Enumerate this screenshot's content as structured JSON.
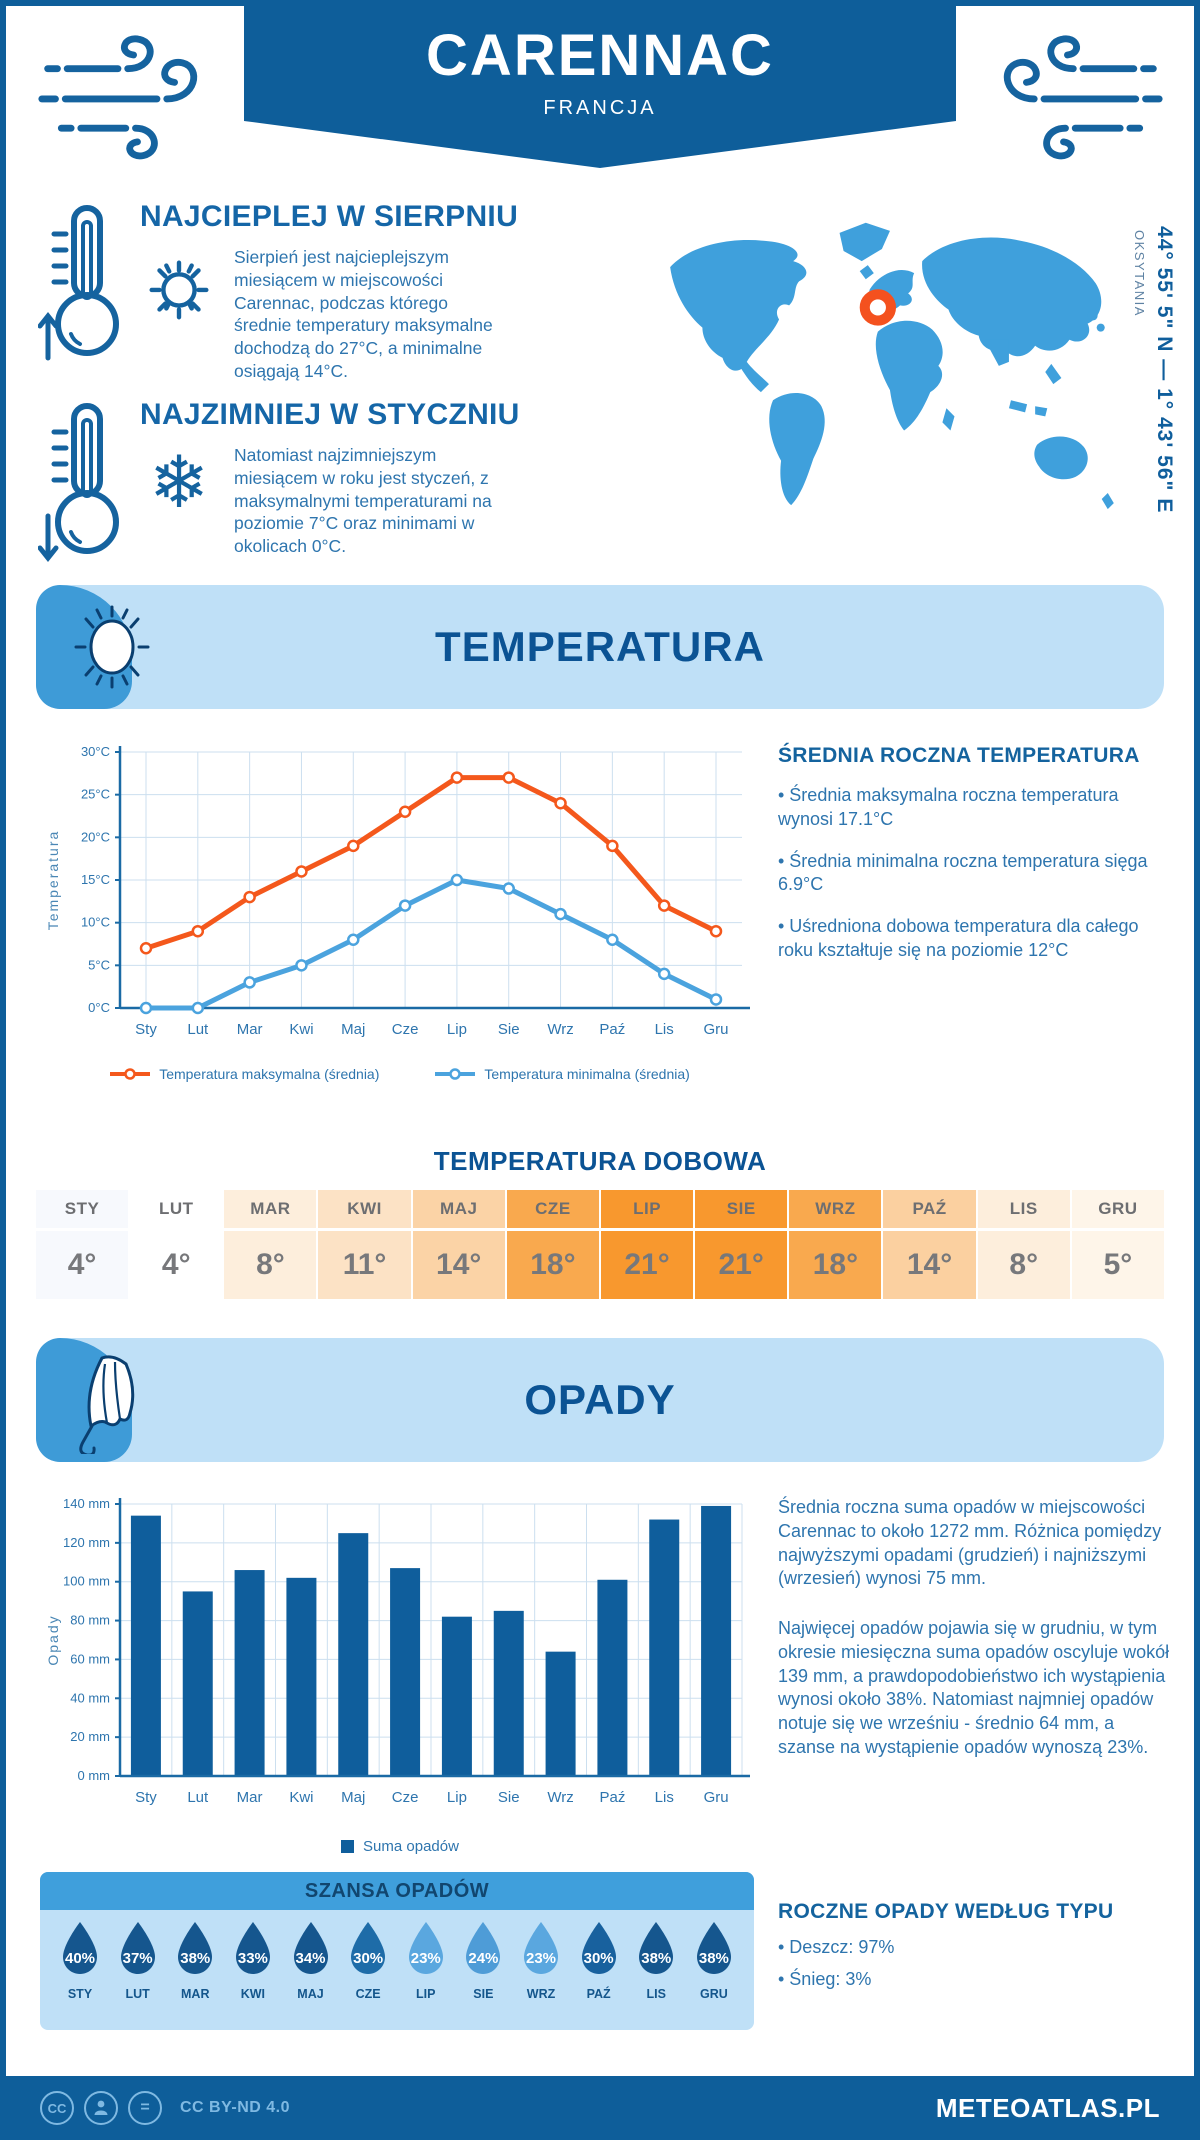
{
  "colors": {
    "brand_dark_blue": "#0E5E9A",
    "heading_blue": "#1566A7",
    "body_blue": "#2E75AE",
    "banner_bg": "#BFE0F7",
    "banner_accent": "#3E9BD7",
    "map_blue": "#3FA0DC",
    "marker_orange": "#F4511E",
    "grid_blue": "#CCDFEF",
    "axis_blue": "#1A6AA5",
    "footer_muted": "#7FB9E2"
  },
  "header": {
    "title": "CARENNAC",
    "subtitle": "FRANCJA"
  },
  "location": {
    "coordinates": "44° 55' 5\" N — 1° 43' 56\" E",
    "region": "OKSYTANIA"
  },
  "warmest": {
    "heading": "NAJCIEPLEJ W SIERPNIU",
    "text": "Sierpień jest najcieplejszym miesiącem w miejscowości Carennac, podczas którego średnie temperatury maksymalne dochodzą do 27°C, a minimalne osiągają 14°C."
  },
  "coldest": {
    "heading": "NAJZIMNIEJ W STYCZNIU",
    "text": "Natomiast najzimniejszym miesiącem w roku jest styczeń, z maksymalnymi temperaturami na poziomie 7°C oraz minimami w okolicach 0°C."
  },
  "temperature": {
    "banner_title": "TEMPERATURA",
    "summary_heading": "ŚREDNIA ROCZNA TEMPERATURA",
    "bullets": [
      "• Średnia maksymalna roczna temperatura wynosi 17.1°C",
      "• Średnia minimalna roczna temperatura sięga 6.9°C",
      "• Uśredniona dobowa temperatura dla całego roku kształtuje się na poziomie 12°C"
    ],
    "daily_heading": "TEMPERATURA DOBOWA"
  },
  "precipitation": {
    "banner_title": "OPADY",
    "paragraphs": [
      "Średnia roczna suma opadów w miejscowości Carennac to około 1272 mm. Różnica pomiędzy najwyższymi opadami (grudzień) i najniższymi (wrzesień) wynosi 75 mm.",
      "Najwięcej opadów pojawia się w grudniu, w tym okresie miesięczna suma opadów oscyluje wokół 139 mm, a prawdopodobieństwo ich wystąpienia wynosi około 38%. Natomiast najmniej opadów notuje się we wrześniu - średnio 64 mm, a szanse na wystąpienie opadów wynoszą 23%."
    ],
    "type_heading": "ROCZNE OPADY WEDŁUG TYPU",
    "type_bullets": [
      "• Deszcz: 97%",
      "• Śnieg: 3%"
    ],
    "chance_heading": "SZANSA OPADÓW"
  },
  "footer": {
    "license": "CC BY-ND 4.0",
    "brand": "METEOATLAS.PL"
  },
  "chart_data": [
    {
      "id": "monthly-temperature",
      "type": "line",
      "x": [
        "Sty",
        "Lut",
        "Mar",
        "Kwi",
        "Maj",
        "Cze",
        "Lip",
        "Sie",
        "Wrz",
        "Paź",
        "Lis",
        "Gru"
      ],
      "series": [
        {
          "name": "Temperatura maksymalna (średnia)",
          "color": "#F4581C",
          "values": [
            7,
            9,
            13,
            16,
            19,
            23,
            27,
            27,
            24,
            19,
            12,
            9
          ]
        },
        {
          "name": "Temperatura minimalna (średnia)",
          "color": "#4BA3DE",
          "values": [
            0,
            0,
            3,
            5,
            8,
            12,
            15,
            14,
            11,
            8,
            4,
            1
          ]
        }
      ],
      "ylabel": "Temperatura",
      "ylim": [
        0,
        30
      ],
      "ytick_step": 5,
      "ytick_suffix": "°C",
      "grid": true,
      "legend_position": "bottom"
    },
    {
      "id": "monthly-precipitation",
      "type": "bar",
      "categories": [
        "Sty",
        "Lut",
        "Mar",
        "Kwi",
        "Maj",
        "Cze",
        "Lip",
        "Sie",
        "Wrz",
        "Paź",
        "Lis",
        "Gru"
      ],
      "values": [
        134,
        95,
        106,
        102,
        125,
        107,
        82,
        85,
        64,
        101,
        132,
        139
      ],
      "legend": "Suma opadów",
      "color": "#0F5E9C",
      "ylabel": "Opady",
      "ylim": [
        0,
        140
      ],
      "ytick_step": 20,
      "ytick_suffix": " mm",
      "grid": true,
      "legend_position": "bottom"
    },
    {
      "id": "daily-temperature",
      "type": "table",
      "title": "TEMPERATURA DOBOWA",
      "columns": [
        "STY",
        "LUT",
        "MAR",
        "KWI",
        "MAJ",
        "CZE",
        "LIP",
        "SIE",
        "WRZ",
        "PAŹ",
        "LIS",
        "GRU"
      ],
      "values": [
        "4°",
        "4°",
        "8°",
        "11°",
        "14°",
        "18°",
        "21°",
        "21°",
        "18°",
        "14°",
        "8°",
        "5°"
      ],
      "cell_colors": [
        "#F7F9FD",
        "#FFFFFF",
        "#FDEEDC",
        "#FCE2C5",
        "#FBD3A6",
        "#F9A94E",
        "#F8982E",
        "#F8982E",
        "#F9A94E",
        "#FBD0A0",
        "#FDEEDC",
        "#FEF5E9"
      ]
    },
    {
      "id": "precipitation-chance",
      "type": "pictogram",
      "title": "SZANSA OPADÓW",
      "categories": [
        "STY",
        "LUT",
        "MAR",
        "KWI",
        "MAJ",
        "CZE",
        "LIP",
        "SIE",
        "WRZ",
        "PAŹ",
        "LIS",
        "GRU"
      ],
      "values": [
        "40%",
        "37%",
        "38%",
        "33%",
        "34%",
        "30%",
        "23%",
        "24%",
        "23%",
        "30%",
        "38%",
        "38%"
      ],
      "drop_colors": [
        "#15568E",
        "#15568E",
        "#15568E",
        "#15568E",
        "#15568E",
        "#1E6CA8",
        "#5AA7DF",
        "#4E9CD7",
        "#5AA7DF",
        "#18619E",
        "#15568E",
        "#15568E"
      ]
    }
  ]
}
